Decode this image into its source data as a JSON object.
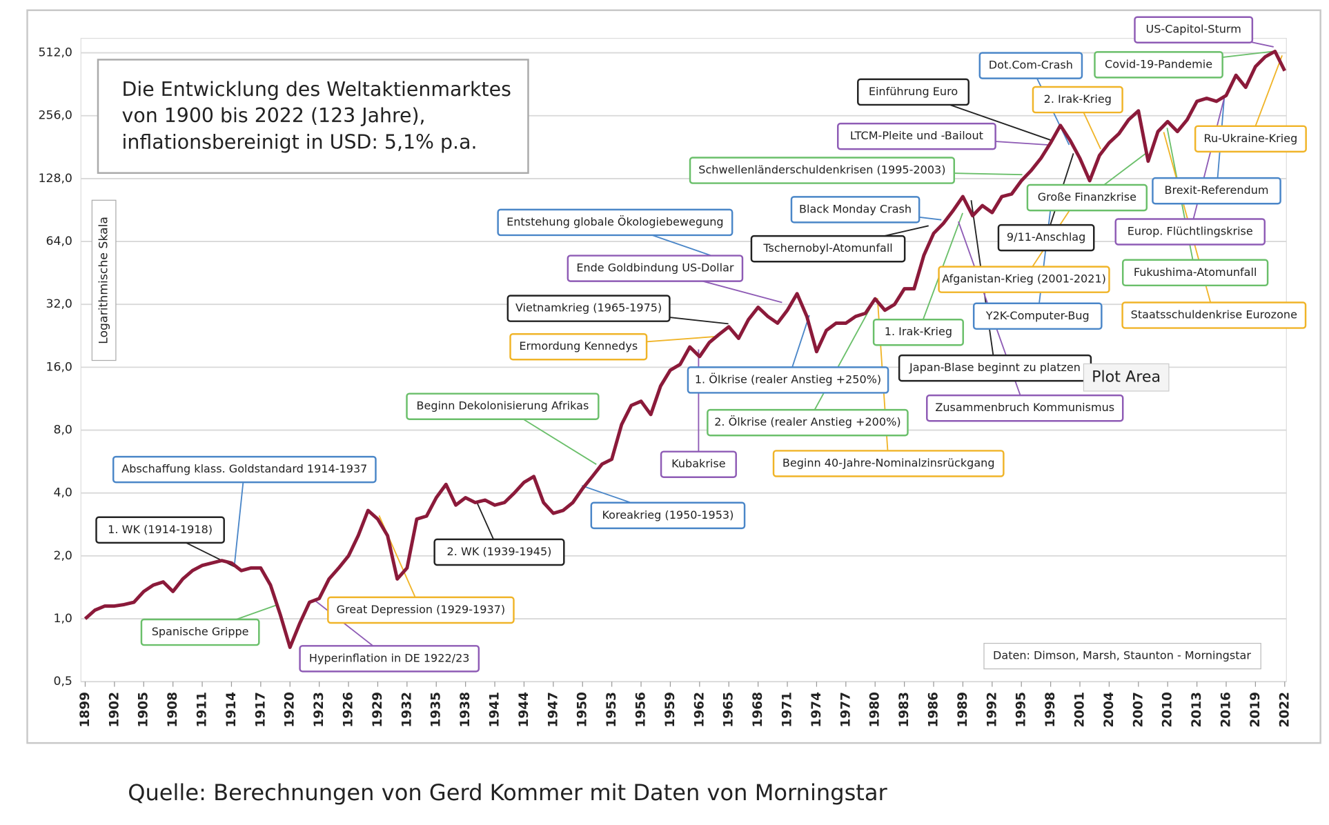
{
  "chart_data": {
    "type": "line",
    "title": [
      "Die Entwicklung des Weltaktienmarktes",
      "von 1900 bis 2022 (123 Jahre),",
      "inflationsbereinigt in USD: 5,1% p.a."
    ],
    "ylabel": "Logarithmische Skala",
    "source_box": "Daten: Dimson, Marsh, Staunton - Morningstar",
    "tooltip": "Plot Area",
    "caption": "Quelle: Berechnungen von Gerd Kommer mit Daten von Morningstar",
    "log_scale": true,
    "grid": true,
    "xlim": [
      1899,
      2022
    ],
    "ylim": [
      0.5,
      512
    ],
    "xticks": [
      1899,
      1902,
      1905,
      1908,
      1911,
      1914,
      1917,
      1920,
      1923,
      1926,
      1929,
      1932,
      1935,
      1938,
      1941,
      1944,
      1947,
      1950,
      1953,
      1956,
      1959,
      1962,
      1965,
      1968,
      1971,
      1974,
      1977,
      1980,
      1983,
      1986,
      1989,
      1992,
      1995,
      1998,
      2001,
      2004,
      2007,
      2010,
      2013,
      2016,
      2019,
      2022
    ],
    "yticks": [
      {
        "value": 0.5,
        "label": "0,5"
      },
      {
        "value": 1,
        "label": "1,0"
      },
      {
        "value": 2,
        "label": "2,0"
      },
      {
        "value": 4,
        "label": "4,0"
      },
      {
        "value": 8,
        "label": "8,0"
      },
      {
        "value": 16,
        "label": "16,0"
      },
      {
        "value": 32,
        "label": "32,0"
      },
      {
        "value": 64,
        "label": "64,0"
      },
      {
        "value": 128,
        "label": "128,0"
      },
      {
        "value": 256,
        "label": "256,0"
      },
      {
        "value": 512,
        "label": "512,0"
      }
    ],
    "x": [
      1899,
      1900,
      1901,
      1902,
      1903,
      1904,
      1905,
      1906,
      1907,
      1908,
      1909,
      1910,
      1911,
      1912,
      1913,
      1914,
      1915,
      1916,
      1917,
      1918,
      1919,
      1920,
      1921,
      1922,
      1923,
      1924,
      1925,
      1926,
      1927,
      1928,
      1929,
      1930,
      1931,
      1932,
      1933,
      1934,
      1935,
      1936,
      1937,
      1938,
      1939,
      1940,
      1941,
      1942,
      1943,
      1944,
      1945,
      1946,
      1947,
      1948,
      1949,
      1950,
      1951,
      1952,
      1953,
      1954,
      1955,
      1956,
      1957,
      1958,
      1959,
      1960,
      1961,
      1962,
      1963,
      1964,
      1965,
      1966,
      1967,
      1968,
      1969,
      1970,
      1971,
      1972,
      1973,
      1974,
      1975,
      1976,
      1977,
      1978,
      1979,
      1980,
      1981,
      1982,
      1983,
      1984,
      1985,
      1986,
      1987,
      1988,
      1989,
      1990,
      1991,
      1992,
      1993,
      1994,
      1995,
      1996,
      1997,
      1998,
      1999,
      2000,
      2001,
      2002,
      2003,
      2004,
      2005,
      2006,
      2007,
      2008,
      2009,
      2010,
      2011,
      2012,
      2013,
      2014,
      2015,
      2016,
      2017,
      2018,
      2019,
      2020,
      2021,
      2022
    ],
    "series": [
      {
        "color": "#8b1a3a",
        "values": [
          1.0,
          1.1,
          1.15,
          1.15,
          1.17,
          1.2,
          1.35,
          1.45,
          1.5,
          1.35,
          1.55,
          1.7,
          1.8,
          1.85,
          1.9,
          1.85,
          1.7,
          1.75,
          1.75,
          1.45,
          1.05,
          0.73,
          0.95,
          1.2,
          1.25,
          1.55,
          1.75,
          2.0,
          2.5,
          3.3,
          3.0,
          2.5,
          1.55,
          1.75,
          3.0,
          3.1,
          3.8,
          4.4,
          3.5,
          3.8,
          3.6,
          3.7,
          3.5,
          3.6,
          4.0,
          4.5,
          4.8,
          3.6,
          3.2,
          3.3,
          3.6,
          4.2,
          4.8,
          5.5,
          5.8,
          8.5,
          10.5,
          11,
          9.5,
          13,
          15.5,
          16.5,
          20,
          18,
          21,
          23,
          25,
          22,
          27,
          31,
          28,
          26,
          30,
          36,
          28,
          19,
          24,
          26,
          26,
          28,
          29,
          34,
          30,
          32,
          38,
          38,
          55,
          70,
          78,
          90,
          105,
          85,
          95,
          88,
          105,
          108,
          125,
          140,
          160,
          190,
          230,
          195,
          160,
          125,
          165,
          190,
          210,
          245,
          270,
          155,
          215,
          240,
          215,
          245,
          300,
          310,
          300,
          320,
          400,
          350,
          440,
          490,
          520,
          420
        ]
      }
    ],
    "annotations": [
      {
        "text": "US-Capitol-Sturm",
        "color": "#8e5bb5"
      },
      {
        "text": "Dot.Com-Crash",
        "color": "#4a86c8"
      },
      {
        "text": "Covid-19-Pandemie",
        "color": "#6abf6a"
      },
      {
        "text": "Einführung Euro",
        "color": "#222222"
      },
      {
        "text": "2. Irak-Krieg",
        "color": "#f0b428"
      },
      {
        "text": "LTCM-Pleite und -Bailout",
        "color": "#8e5bb5"
      },
      {
        "text": "Ru-Ukraine-Krieg",
        "color": "#f0b428"
      },
      {
        "text": "Schwellenländerschuldenkrisen (1995-2003)",
        "color": "#6abf6a"
      },
      {
        "text": "Brexit-Referendum",
        "color": "#4a86c8"
      },
      {
        "text": "Große Finanzkrise",
        "color": "#6abf6a"
      },
      {
        "text": "Black Monday Crash",
        "color": "#4a86c8"
      },
      {
        "text": "9/11-Anschlag",
        "color": "#222222"
      },
      {
        "text": "Europ. Flüchtlingskrise",
        "color": "#8e5bb5"
      },
      {
        "text": "Entstehung globale Ökologiebewegung",
        "color": "#4a86c8"
      },
      {
        "text": "Tschernobyl-Atomunfall",
        "color": "#222222"
      },
      {
        "text": "Ende Goldbindung US-Dollar",
        "color": "#8e5bb5"
      },
      {
        "text": "Fukushima-Atomunfall",
        "color": "#6abf6a"
      },
      {
        "text": "Afganistan-Krieg (2001-2021)",
        "color": "#f0b428"
      },
      {
        "text": "Vietnamkrieg (1965-1975)",
        "color": "#222222"
      },
      {
        "text": "Y2K-Computer-Bug",
        "color": "#4a86c8"
      },
      {
        "text": "Staatsschuldenkrise Eurozone",
        "color": "#f0b428"
      },
      {
        "text": "1. Irak-Krieg",
        "color": "#6abf6a"
      },
      {
        "text": "Ermordung Kennedys",
        "color": "#f0b428"
      },
      {
        "text": "Japan-Blase beginnt zu platzen",
        "color": "#222222"
      },
      {
        "text": "1. Ölkrise (realer Anstieg +250%)",
        "color": "#4a86c8"
      },
      {
        "text": "Beginn Dekolonisierung Afrikas",
        "color": "#6abf6a"
      },
      {
        "text": "Zusammenbruch Kommunismus",
        "color": "#8e5bb5"
      },
      {
        "text": "2. Ölkrise (realer Anstieg +200%)",
        "color": "#6abf6a"
      },
      {
        "text": "Abschaffung klass. Goldstandard 1914-1937",
        "color": "#4a86c8"
      },
      {
        "text": "Kubakrise",
        "color": "#8e5bb5"
      },
      {
        "text": "Beginn 40-Jahre-Nominalzinsrückgang",
        "color": "#f0b428"
      },
      {
        "text": "Koreakrieg (1950-1953)",
        "color": "#4a86c8"
      },
      {
        "text": "1. WK (1914-1918)",
        "color": "#222222"
      },
      {
        "text": "2. WK (1939-1945)",
        "color": "#222222"
      },
      {
        "text": "Great Depression (1929-1937)",
        "color": "#f0b428"
      },
      {
        "text": "Spanische Grippe",
        "color": "#6abf6a"
      },
      {
        "text": "Hyperinflation in DE 1922/23",
        "color": "#8e5bb5"
      }
    ]
  }
}
